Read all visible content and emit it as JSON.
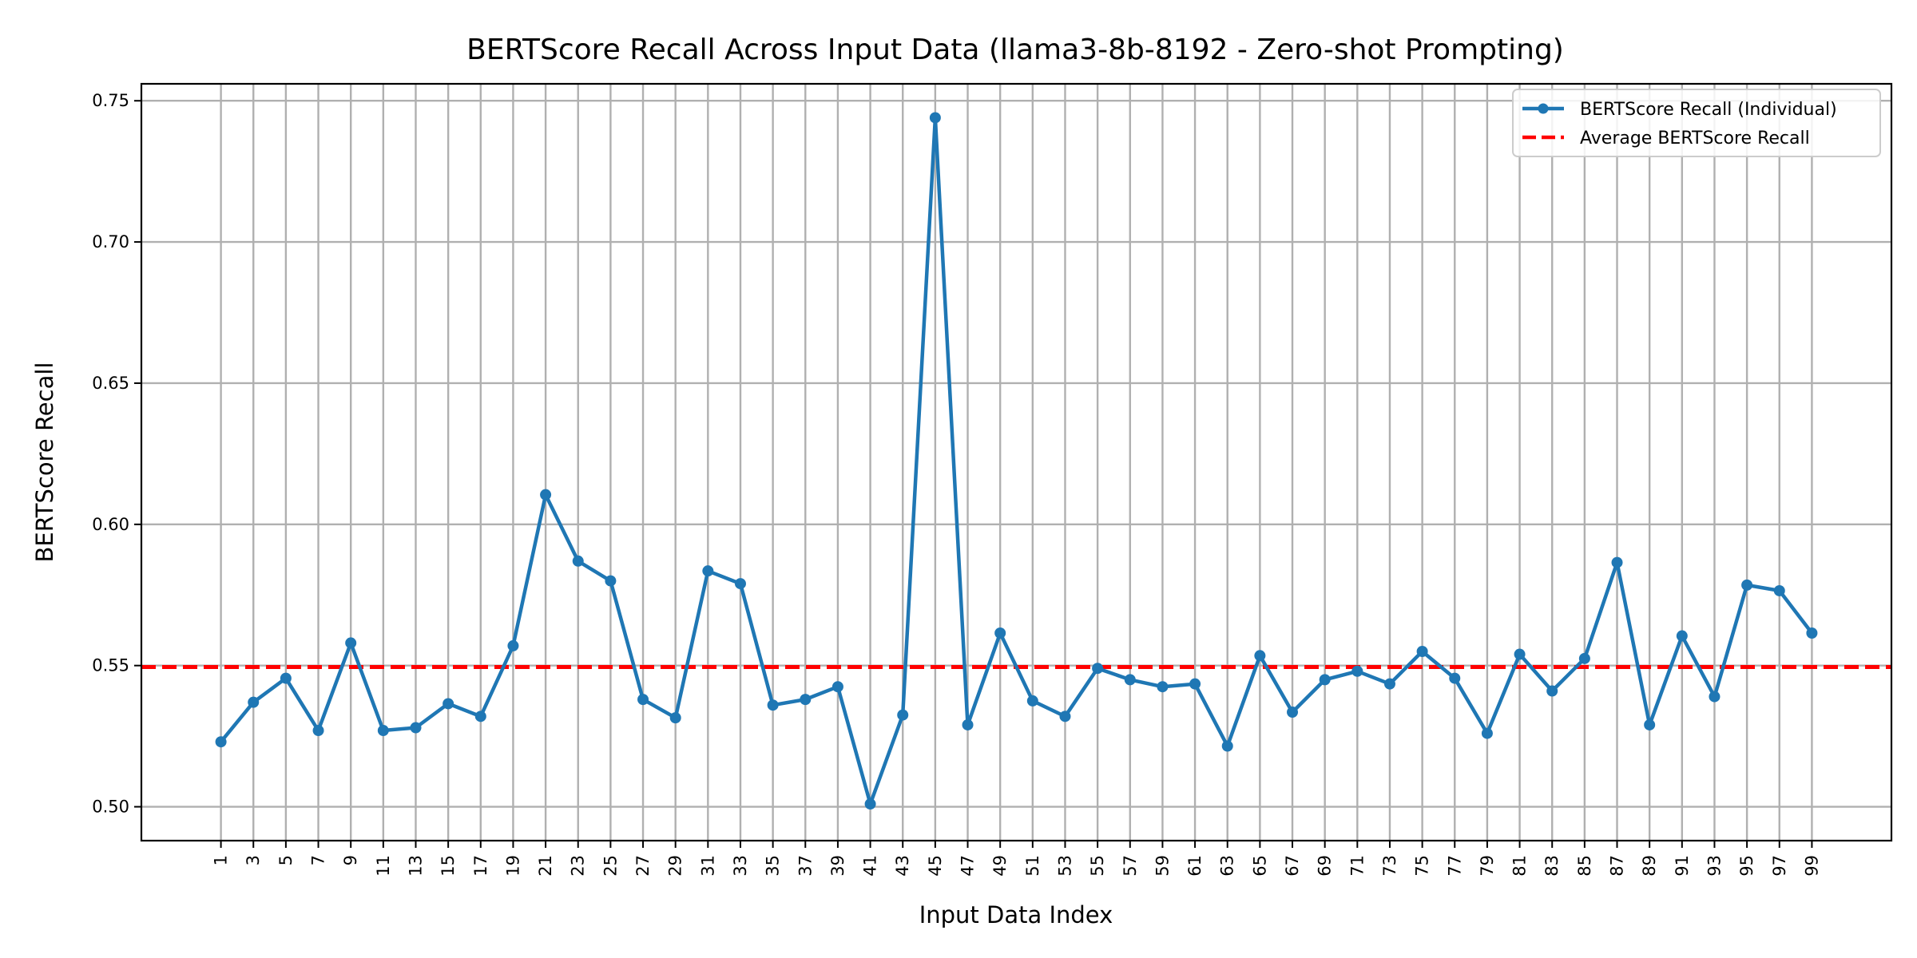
{
  "chart_data": {
    "type": "line",
    "title": "BERTScore Recall Across Input Data (llama3-8b-8192 - Zero-shot Prompting)",
    "xlabel": "Input Data Index",
    "ylabel": "BERTScore Recall",
    "xlim": [
      -3.9,
      103.9
    ],
    "ylim": [
      0.488,
      0.756
    ],
    "x_ticks": [
      1,
      3,
      5,
      7,
      9,
      11,
      13,
      15,
      17,
      19,
      21,
      23,
      25,
      27,
      29,
      31,
      33,
      35,
      37,
      39,
      41,
      43,
      45,
      47,
      49,
      51,
      53,
      55,
      57,
      59,
      61,
      63,
      65,
      67,
      69,
      71,
      73,
      75,
      77,
      79,
      81,
      83,
      85,
      87,
      89,
      91,
      93,
      95,
      97,
      99
    ],
    "y_ticks": [
      "0.50",
      "0.55",
      "0.60",
      "0.65",
      "0.70",
      "0.75"
    ],
    "grid": true,
    "legend_position": "top-right",
    "series": [
      {
        "name": "BERTScore Recall (Individual)",
        "color": "#1f77b4",
        "style": "line-with-dot-markers",
        "x": [
          1,
          3,
          5,
          7,
          9,
          11,
          13,
          15,
          17,
          19,
          21,
          23,
          25,
          27,
          29,
          31,
          33,
          35,
          37,
          39,
          41,
          43,
          45,
          47,
          49,
          51,
          53,
          55,
          57,
          59,
          61,
          63,
          65,
          67,
          69,
          71,
          73,
          75,
          77,
          79,
          81,
          83,
          85,
          87,
          89,
          91,
          93,
          95,
          97,
          99
        ],
        "values": [
          0.523,
          0.537,
          0.5455,
          0.527,
          0.558,
          0.527,
          0.528,
          0.5365,
          0.532,
          0.557,
          0.6105,
          0.587,
          0.58,
          0.538,
          0.5315,
          0.5835,
          0.579,
          0.536,
          0.538,
          0.5425,
          0.501,
          0.5325,
          0.744,
          0.529,
          0.5615,
          0.5375,
          0.532,
          0.549,
          0.545,
          0.5425,
          0.5435,
          0.5215,
          0.5535,
          0.5335,
          0.545,
          0.548,
          0.5435,
          0.555,
          0.5455,
          0.526,
          0.554,
          0.541,
          0.5525,
          0.5865,
          0.529,
          0.5605,
          0.539,
          0.5785,
          0.5765,
          0.5615
        ]
      },
      {
        "name": "Average BERTScore Recall",
        "color": "#ff0000",
        "style": "dashed-horizontal",
        "value": 0.5495
      }
    ]
  }
}
